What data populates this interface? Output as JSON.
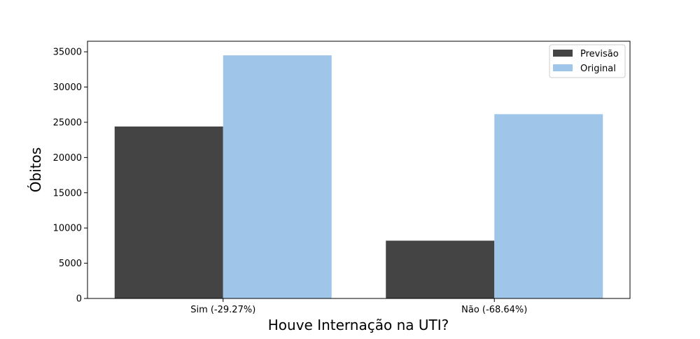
{
  "chart_data": {
    "type": "bar",
    "title": "",
    "xlabel": "Houve Internação na UTI?",
    "ylabel": "Óbitos",
    "categories": [
      "Sim (-29.27%)",
      "Não (-68.64%)"
    ],
    "series": [
      {
        "name": "Previsão",
        "values": [
          24400,
          8200
        ],
        "color": "#444444"
      },
      {
        "name": "Original",
        "values": [
          34500,
          26150
        ],
        "color": "#9fc5e8"
      }
    ],
    "ylim": [
      0,
      36500
    ],
    "yticks": [
      0,
      5000,
      10000,
      15000,
      20000,
      25000,
      30000,
      35000
    ],
    "grid": false,
    "legend_position": "top-right"
  }
}
